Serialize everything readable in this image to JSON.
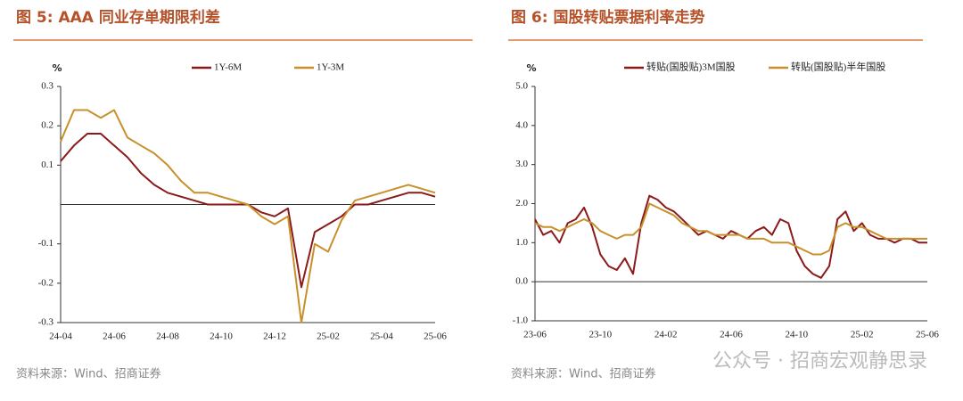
{
  "chart_data": [
    {
      "type": "line",
      "title": "图 5:  AAA 同业存单期限利差",
      "y_label": "%",
      "source": "资料来源：Wind、招商证券",
      "categories": [
        "24-04",
        null,
        null,
        null,
        "24-06",
        null,
        null,
        null,
        "24-08",
        null,
        null,
        null,
        "24-10",
        null,
        null,
        null,
        "24-12",
        null,
        null,
        null,
        "25-02",
        null,
        null,
        null,
        "25-04",
        null,
        null,
        null,
        "25-06"
      ],
      "series": [
        {
          "name": "1Y-6M",
          "color": "#8b1a1a",
          "values": [
            0.11,
            0.15,
            0.18,
            0.18,
            0.15,
            0.12,
            0.08,
            0.05,
            0.03,
            0.02,
            0.01,
            0.0,
            0.0,
            0.0,
            0.0,
            -0.02,
            -0.03,
            -0.01,
            -0.21,
            -0.07,
            -0.05,
            -0.03,
            0.0,
            0.0,
            0.01,
            0.02,
            0.03,
            0.03,
            0.02
          ]
        },
        {
          "name": "1Y-3M",
          "color": "#c8902a",
          "values": [
            0.16,
            0.24,
            0.24,
            0.22,
            0.24,
            0.17,
            0.15,
            0.13,
            0.1,
            0.06,
            0.03,
            0.03,
            0.02,
            0.01,
            0.0,
            -0.03,
            -0.05,
            -0.03,
            -0.3,
            -0.1,
            -0.12,
            -0.04,
            0.01,
            0.02,
            0.03,
            0.04,
            0.05,
            0.04,
            0.03
          ]
        }
      ],
      "ylim": [
        -0.3,
        0.3
      ],
      "yticks": [
        0.3,
        0.2,
        0.1,
        -0.1,
        -0.2,
        -0.3
      ]
    },
    {
      "type": "line",
      "title": "图 6:  国股转贴票据利率走势",
      "y_label": "%",
      "source": "资料来源：Wind、招商证券",
      "watermark": "公众号 · 招商宏观静思录",
      "categories": [
        "23-06",
        null,
        null,
        null,
        null,
        null,
        null,
        null,
        "23-10",
        null,
        null,
        null,
        null,
        null,
        null,
        null,
        "24-02",
        null,
        null,
        null,
        null,
        null,
        null,
        null,
        "24-06",
        null,
        null,
        null,
        null,
        null,
        null,
        null,
        "24-10",
        null,
        null,
        null,
        null,
        null,
        null,
        null,
        "25-02",
        null,
        null,
        null,
        null,
        null,
        null,
        null,
        "25-06"
      ],
      "series": [
        {
          "name": "转贴(国股贴)3M国股",
          "color": "#8b1a1a",
          "values": [
            1.6,
            1.2,
            1.3,
            1.0,
            1.5,
            1.6,
            1.9,
            1.4,
            0.7,
            0.4,
            0.3,
            0.6,
            0.2,
            1.5,
            2.2,
            2.1,
            1.9,
            1.8,
            1.6,
            1.4,
            1.2,
            1.3,
            1.2,
            1.1,
            1.3,
            1.2,
            1.1,
            1.3,
            1.4,
            1.2,
            1.6,
            1.5,
            0.8,
            0.4,
            0.2,
            0.1,
            0.4,
            1.6,
            1.8,
            1.3,
            1.5,
            1.2,
            1.1,
            1.1,
            1.0,
            1.1,
            1.1,
            1.0,
            1.0
          ]
        },
        {
          "name": "转贴(国股贴)半年国股",
          "color": "#c8902a",
          "values": [
            1.5,
            1.4,
            1.4,
            1.3,
            1.4,
            1.5,
            1.6,
            1.5,
            1.3,
            1.2,
            1.1,
            1.2,
            1.2,
            1.4,
            2.0,
            1.9,
            1.8,
            1.7,
            1.5,
            1.4,
            1.3,
            1.3,
            1.2,
            1.2,
            1.2,
            1.2,
            1.1,
            1.1,
            1.1,
            1.0,
            1.0,
            1.0,
            0.9,
            0.8,
            0.7,
            0.7,
            0.8,
            1.4,
            1.5,
            1.4,
            1.4,
            1.3,
            1.2,
            1.1,
            1.1,
            1.1,
            1.1,
            1.1,
            1.1
          ]
        }
      ],
      "ylim": [
        -1.0,
        5.0
      ],
      "yticks": [
        {
          "value": 5,
          "label": "5.0"
        },
        {
          "value": 4,
          "label": "4.0"
        },
        {
          "value": 3,
          "label": "3.0"
        },
        {
          "value": 2,
          "label": "2.0"
        },
        {
          "value": 1,
          "label": "1.0"
        },
        {
          "value": 0,
          "label": "0.0"
        },
        {
          "value": -1,
          "label": "-1.0"
        }
      ]
    }
  ]
}
